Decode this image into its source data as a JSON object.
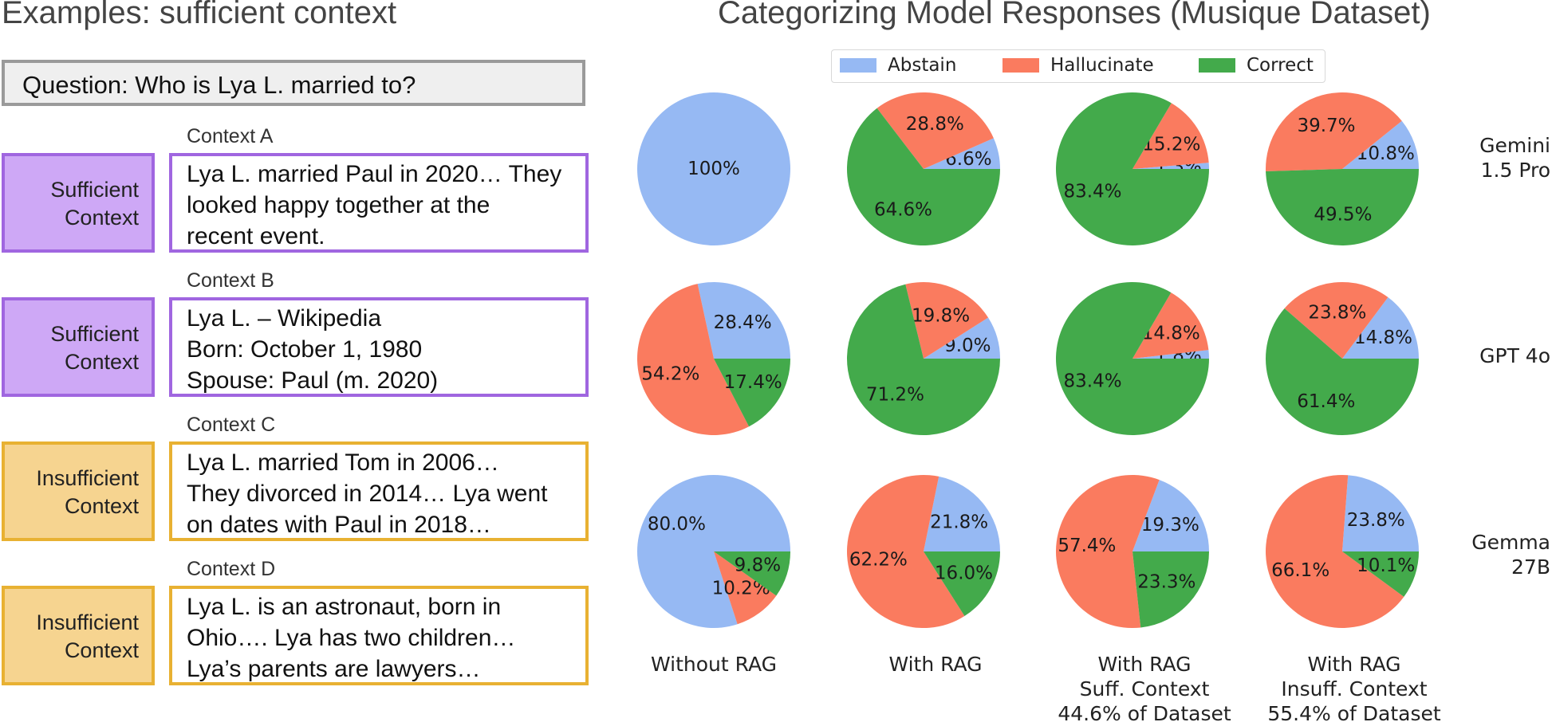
{
  "left_panel": {
    "title": "Examples: sufficient context",
    "question": "Question: Who is Lya L. married to?",
    "contexts": [
      {
        "label": "Context A",
        "tag_lines": [
          "Sufficient",
          "Context"
        ],
        "kind": "sufficient",
        "lines": [
          "Lya L. married Paul in 2020… They",
          "looked happy together at the",
          "recent event."
        ]
      },
      {
        "label": "Context B",
        "tag_lines": [
          "Sufficient",
          "Context"
        ],
        "kind": "sufficient",
        "lines": [
          "Lya L. – Wikipedia",
          "Born: October 1, 1980",
          "Spouse: Paul (m. 2020)"
        ]
      },
      {
        "label": "Context C",
        "tag_lines": [
          "Insufficient",
          "Context"
        ],
        "kind": "insufficient",
        "lines": [
          "Lya L. married Tom in 2006…",
          "They divorced in 2014… Lya went",
          "on dates with Paul in 2018…"
        ]
      },
      {
        "label": "Context D",
        "tag_lines": [
          "Insufficient",
          "Context"
        ],
        "kind": "insufficient",
        "lines": [
          "Lya L. is an astronaut, born in",
          "Ohio…. Lya has two children…",
          "Lya’s parents are lawyers…"
        ]
      }
    ],
    "colors": {
      "sufficient_fill": "#cea8f6",
      "sufficient_border": "#a066e0",
      "insufficient_fill": "#f6d490",
      "insufficient_border": "#e8b132"
    }
  },
  "chart_data": {
    "type": "pie",
    "title": "Categorizing Model Responses (Musique Dataset)",
    "legend": {
      "placement": "top",
      "entries": [
        {
          "name": "Abstain",
          "color": "#96b9f3"
        },
        {
          "name": "Hallucinate",
          "color": "#fa7b5f"
        },
        {
          "name": "Correct",
          "color": "#43aa4b"
        }
      ]
    },
    "columns": [
      {
        "lines": [
          "Without RAG"
        ]
      },
      {
        "lines": [
          "With RAG"
        ]
      },
      {
        "lines": [
          "With RAG",
          "Suff. Context",
          "44.6% of Dataset"
        ]
      },
      {
        "lines": [
          "With RAG",
          "Insuff. Context",
          "55.4% of Dataset"
        ]
      }
    ],
    "rows": [
      {
        "lines": [
          "Gemini",
          "1.5 Pro"
        ]
      },
      {
        "lines": [
          "GPT 4o"
        ]
      },
      {
        "lines": [
          "Gemma",
          "27B"
        ]
      }
    ],
    "pies": [
      [
        {
          "values": [
            100,
            0,
            0
          ],
          "labels": [
            "100%",
            "",
            ""
          ]
        },
        {
          "values": [
            6.6,
            28.8,
            64.6
          ],
          "labels": [
            "6.6%",
            "28.8%",
            "64.6%"
          ]
        },
        {
          "values": [
            1.3,
            15.2,
            83.4
          ],
          "labels": [
            "1.3%",
            "15.2%",
            "83.4%"
          ]
        },
        {
          "values": [
            10.8,
            39.7,
            49.5
          ],
          "labels": [
            "10.8%",
            "39.7%",
            "49.5%"
          ]
        }
      ],
      [
        {
          "values": [
            28.4,
            54.2,
            17.4
          ],
          "labels": [
            "28.4%",
            "54.2%",
            "17.4%"
          ]
        },
        {
          "values": [
            9.0,
            19.8,
            71.2
          ],
          "labels": [
            "9.0%",
            "19.8%",
            "71.2%"
          ]
        },
        {
          "values": [
            1.8,
            14.8,
            83.4
          ],
          "labels": [
            "1.8%",
            "14.8%",
            "83.4%"
          ]
        },
        {
          "values": [
            14.8,
            23.8,
            61.4
          ],
          "labels": [
            "14.8%",
            "23.8%",
            "61.4%"
          ]
        }
      ],
      [
        {
          "values": [
            80.0,
            10.2,
            9.8
          ],
          "labels": [
            "80.0%",
            "10.2%",
            "9.8%"
          ]
        },
        {
          "values": [
            21.8,
            62.2,
            16.0
          ],
          "labels": [
            "21.8%",
            "62.2%",
            "16.0%"
          ]
        },
        {
          "values": [
            19.3,
            57.4,
            23.3
          ],
          "labels": [
            "19.3%",
            "57.4%",
            "23.3%"
          ]
        },
        {
          "values": [
            23.8,
            66.1,
            10.1
          ],
          "labels": [
            "23.8%",
            "66.1%",
            "10.1%"
          ]
        }
      ]
    ]
  }
}
